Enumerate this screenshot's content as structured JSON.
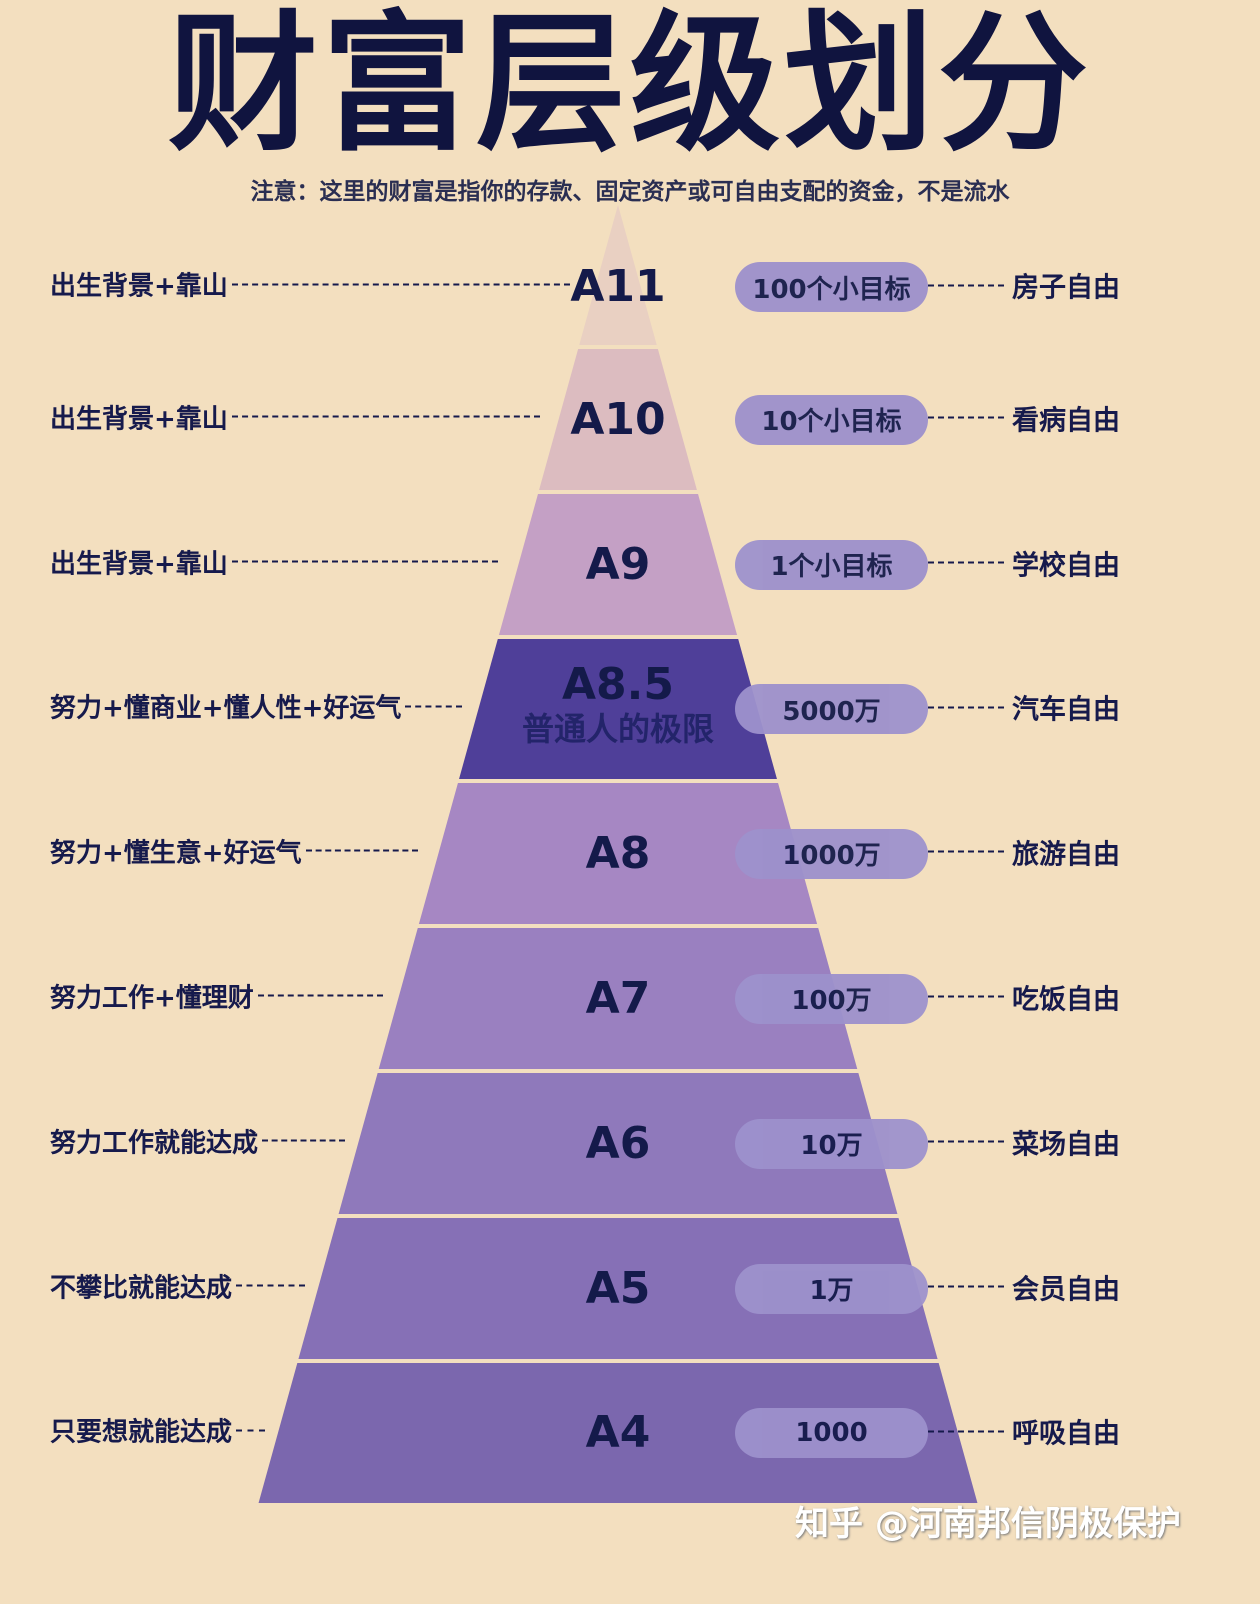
{
  "title": "财富层级划分",
  "subtitle": "注意：这里的财富是指你的存款、固定资产或可自由支配的资金，不是流水",
  "watermark": "知乎 @河南邦信阴极保护",
  "levels": [
    {
      "level": "A11",
      "sub": "",
      "left": "出生背景+靠山",
      "amount": "100个小目标",
      "freedom": "房子自由",
      "color": "#e9d0c2"
    },
    {
      "level": "A10",
      "sub": "",
      "left": "出生背景+靠山",
      "amount": "10个小目标",
      "freedom": "看病自由",
      "color": "#dcbcc0"
    },
    {
      "level": "A9",
      "sub": "",
      "left": "出生背景+靠山",
      "amount": "1个小目标",
      "freedom": "学校自由",
      "color": "#c4a0c5"
    },
    {
      "level": "A8.5",
      "sub": "普通人的极限",
      "left": "努力+懂商业+懂人性+好运气",
      "amount": "5000万",
      "freedom": "汽车自由",
      "color": "#4f3f99"
    },
    {
      "level": "A8",
      "sub": "",
      "left": "努力+懂生意+好运气",
      "amount": "1000万",
      "freedom": "旅游自由",
      "color": "#a687c3"
    },
    {
      "level": "A7",
      "sub": "",
      "left": "努力工作+懂理财",
      "amount": "100万",
      "freedom": "吃饭自由",
      "color": "#9a80c0"
    },
    {
      "level": "A6",
      "sub": "",
      "left": "努力工作就能达成",
      "amount": "10万",
      "freedom": "菜场自由",
      "color": "#8f79bb"
    },
    {
      "level": "A5",
      "sub": "",
      "left": "不攀比就能达成",
      "amount": "1万",
      "freedom": "会员自由",
      "color": "#8670b6"
    },
    {
      "level": "A4",
      "sub": "",
      "left": "只要想就能达成",
      "amount": "1000",
      "freedom": "呼吸自由",
      "color": "#7b67ae"
    }
  ]
}
